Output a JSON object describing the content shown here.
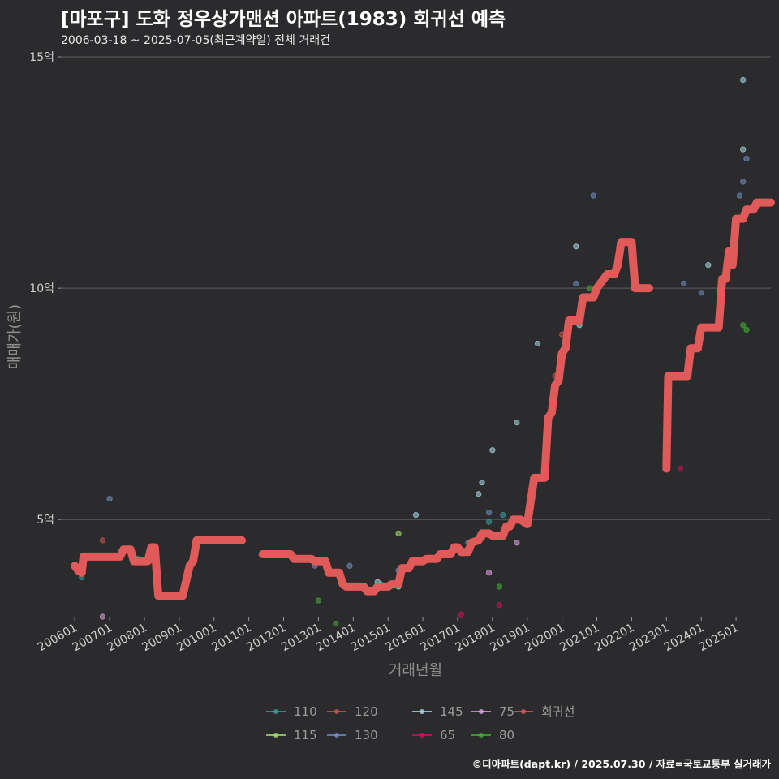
{
  "header": {
    "title": "[마포구] 도화 정우상가맨션 아파트(1983) 회귀선 예측",
    "subtitle": "2006-03-18 ~ 2025-07-05(최근계약일) 전체 거래건"
  },
  "caption": "©디아파트(dapt.kr) / 2025.07.30 / 자료=국토교통부 실거래가",
  "colors": {
    "background": "#2b2b2d",
    "grid": "#555555",
    "regression": "#e05a5a",
    "s110": "#3a9ea0",
    "s115": "#a4e06a",
    "s120": "#d05545",
    "s130": "#6f8fc0",
    "s145": "#a8dce6",
    "s65": "#d0105a",
    "s75": "#e0a0e0",
    "s80": "#40b030"
  },
  "chart_data": {
    "type": "scatter",
    "title": "[마포구] 도화 정우상가맨션 아파트(1983) 회귀선 예측",
    "xlabel": "거래년월",
    "ylabel": "매매가(원)",
    "xlim": [
      2005.6,
      2026.0
    ],
    "ylim": [
      2.9,
      15.0
    ],
    "y_unit": "억",
    "y_ticks": [
      {
        "value": 5,
        "label": "5억"
      },
      {
        "value": 10,
        "label": "10억"
      },
      {
        "value": 15,
        "label": "15억"
      }
    ],
    "x_ticks": [
      {
        "value": 2006.0,
        "label": "200601"
      },
      {
        "value": 2007.0,
        "label": "200701"
      },
      {
        "value": 2008.0,
        "label": "200801"
      },
      {
        "value": 2009.0,
        "label": "200901"
      },
      {
        "value": 2010.0,
        "label": "201001"
      },
      {
        "value": 2011.0,
        "label": "201101"
      },
      {
        "value": 2012.0,
        "label": "201201"
      },
      {
        "value": 2013.0,
        "label": "201301"
      },
      {
        "value": 2014.0,
        "label": "201401"
      },
      {
        "value": 2015.0,
        "label": "201501"
      },
      {
        "value": 2016.0,
        "label": "201601"
      },
      {
        "value": 2017.0,
        "label": "201701"
      },
      {
        "value": 2018.0,
        "label": "201801"
      },
      {
        "value": 2019.0,
        "label": "201901"
      },
      {
        "value": 2020.0,
        "label": "202001"
      },
      {
        "value": 2021.0,
        "label": "202101"
      },
      {
        "value": 2022.0,
        "label": "202201"
      },
      {
        "value": 2023.0,
        "label": "202301"
      },
      {
        "value": 2024.0,
        "label": "202401"
      },
      {
        "value": 2025.0,
        "label": "202501"
      }
    ],
    "legend": [
      {
        "key": "s110",
        "label": "110"
      },
      {
        "key": "s120",
        "label": "120"
      },
      {
        "key": "s145",
        "label": "145"
      },
      {
        "key": "s75",
        "label": "75"
      },
      {
        "key": "regression",
        "label": "회귀선"
      },
      {
        "key": "s115",
        "label": "115"
      },
      {
        "key": "s130",
        "label": "130"
      },
      {
        "key": "s65",
        "label": "65"
      },
      {
        "key": "s80",
        "label": "80"
      }
    ],
    "series": [
      {
        "name": "110",
        "key": "s110",
        "points": [
          [
            2006.2,
            3.75
          ],
          [
            2007.8,
            4.15
          ],
          [
            2015.7,
            4.1
          ],
          [
            2017.3,
            4.5
          ],
          [
            2017.9,
            4.95
          ],
          [
            2018.3,
            5.1
          ]
        ]
      },
      {
        "name": "115",
        "key": "s115",
        "points": [
          [
            2015.3,
            4.7
          ],
          [
            2017.7,
            4.6
          ]
        ]
      },
      {
        "name": "120",
        "key": "s120",
        "points": [
          [
            2006.8,
            4.55
          ],
          [
            2019.8,
            8.1
          ],
          [
            2020.0,
            9.0
          ]
        ]
      },
      {
        "name": "130",
        "key": "s130",
        "points": [
          [
            2007.0,
            5.45
          ],
          [
            2012.9,
            4.0
          ],
          [
            2013.9,
            4.0
          ],
          [
            2014.8,
            3.6
          ],
          [
            2015.3,
            3.9
          ],
          [
            2017.9,
            5.15
          ],
          [
            2020.4,
            10.1
          ],
          [
            2020.9,
            12.0
          ],
          [
            2023.5,
            10.1
          ],
          [
            2024.0,
            9.9
          ],
          [
            2025.1,
            12.0
          ],
          [
            2025.2,
            12.3
          ],
          [
            2025.3,
            12.8
          ]
        ]
      },
      {
        "name": "145",
        "key": "s145",
        "points": [
          [
            2014.7,
            3.65
          ],
          [
            2015.3,
            3.55
          ],
          [
            2015.8,
            5.1
          ],
          [
            2017.6,
            5.55
          ],
          [
            2017.7,
            5.8
          ],
          [
            2018.0,
            6.5
          ],
          [
            2018.7,
            7.1
          ],
          [
            2019.3,
            8.8
          ],
          [
            2020.4,
            10.9
          ],
          [
            2020.5,
            9.2
          ],
          [
            2024.2,
            10.5
          ],
          [
            2025.2,
            13.0
          ],
          [
            2025.2,
            14.5
          ]
        ]
      },
      {
        "name": "65",
        "key": "s65",
        "points": [
          [
            2017.1,
            2.95
          ],
          [
            2018.2,
            3.15
          ],
          [
            2023.4,
            6.1
          ]
        ]
      },
      {
        "name": "75",
        "key": "s75",
        "points": [
          [
            2006.8,
            2.9
          ],
          [
            2017.9,
            3.85
          ],
          [
            2018.7,
            4.5
          ]
        ]
      },
      {
        "name": "80",
        "key": "s80",
        "points": [
          [
            2013.0,
            3.25
          ],
          [
            2013.5,
            2.75
          ],
          [
            2018.2,
            3.55
          ],
          [
            2020.8,
            10.0
          ],
          [
            2025.2,
            9.2
          ],
          [
            2025.3,
            9.1
          ]
        ]
      }
    ],
    "regression_line": [
      [
        [
          2006.0,
          4.0
        ],
        [
          2006.1,
          3.9
        ],
        [
          2006.2,
          3.85
        ],
        [
          2006.25,
          4.2
        ],
        [
          2007.3,
          4.2
        ],
        [
          2007.4,
          4.35
        ],
        [
          2007.6,
          4.35
        ],
        [
          2007.7,
          4.1
        ],
        [
          2008.1,
          4.1
        ],
        [
          2008.2,
          4.4
        ],
        [
          2008.3,
          4.4
        ],
        [
          2008.4,
          3.35
        ],
        [
          2009.1,
          3.35
        ],
        [
          2009.3,
          4.0
        ],
        [
          2009.4,
          4.1
        ],
        [
          2009.5,
          4.55
        ],
        [
          2010.8,
          4.55
        ]
      ],
      [
        [
          2011.4,
          4.25
        ],
        [
          2012.2,
          4.25
        ],
        [
          2012.3,
          4.15
        ],
        [
          2012.8,
          4.15
        ],
        [
          2012.9,
          4.1
        ],
        [
          2013.2,
          4.1
        ],
        [
          2013.3,
          3.85
        ],
        [
          2013.6,
          3.85
        ],
        [
          2013.7,
          3.6
        ],
        [
          2013.8,
          3.55
        ],
        [
          2014.3,
          3.55
        ],
        [
          2014.4,
          3.45
        ],
        [
          2014.6,
          3.45
        ],
        [
          2014.7,
          3.55
        ],
        [
          2015.0,
          3.55
        ],
        [
          2015.1,
          3.6
        ],
        [
          2015.3,
          3.6
        ],
        [
          2015.4,
          3.95
        ],
        [
          2015.6,
          3.95
        ],
        [
          2015.7,
          4.1
        ],
        [
          2016.0,
          4.1
        ],
        [
          2016.1,
          4.15
        ],
        [
          2016.4,
          4.15
        ],
        [
          2016.5,
          4.25
        ],
        [
          2016.8,
          4.25
        ],
        [
          2016.9,
          4.4
        ],
        [
          2017.0,
          4.4
        ],
        [
          2017.1,
          4.3
        ],
        [
          2017.3,
          4.3
        ],
        [
          2017.4,
          4.5
        ],
        [
          2017.6,
          4.55
        ],
        [
          2017.7,
          4.7
        ],
        [
          2017.9,
          4.7
        ],
        [
          2018.0,
          4.65
        ],
        [
          2018.3,
          4.65
        ],
        [
          2018.4,
          4.85
        ],
        [
          2018.5,
          4.85
        ],
        [
          2018.6,
          5.0
        ],
        [
          2018.8,
          5.0
        ],
        [
          2019.0,
          4.9
        ],
        [
          2019.2,
          5.9
        ],
        [
          2019.5,
          5.9
        ],
        [
          2019.6,
          7.2
        ],
        [
          2019.7,
          7.3
        ],
        [
          2019.8,
          7.9
        ],
        [
          2019.9,
          8.0
        ],
        [
          2020.0,
          8.6
        ],
        [
          2020.1,
          8.7
        ],
        [
          2020.2,
          9.3
        ],
        [
          2020.5,
          9.3
        ],
        [
          2020.6,
          9.8
        ],
        [
          2020.9,
          9.8
        ],
        [
          2021.0,
          10.0
        ],
        [
          2021.1,
          10.1
        ],
        [
          2021.2,
          10.2
        ],
        [
          2021.3,
          10.3
        ],
        [
          2021.5,
          10.3
        ],
        [
          2021.6,
          10.5
        ],
        [
          2021.7,
          11.0
        ],
        [
          2022.0,
          11.0
        ],
        [
          2022.1,
          10.0
        ],
        [
          2022.5,
          10.0
        ]
      ],
      [
        [
          2023.0,
          6.1
        ],
        [
          2023.05,
          8.1
        ],
        [
          2023.6,
          8.1
        ],
        [
          2023.7,
          8.7
        ],
        [
          2023.9,
          8.7
        ],
        [
          2024.0,
          9.15
        ],
        [
          2024.5,
          9.15
        ],
        [
          2024.6,
          10.2
        ],
        [
          2024.7,
          10.2
        ],
        [
          2024.8,
          10.8
        ],
        [
          2024.9,
          10.5
        ],
        [
          2025.0,
          11.5
        ],
        [
          2025.2,
          11.5
        ],
        [
          2025.3,
          11.7
        ],
        [
          2025.5,
          11.7
        ],
        [
          2025.6,
          11.85
        ],
        [
          2026.0,
          11.85
        ]
      ]
    ]
  }
}
